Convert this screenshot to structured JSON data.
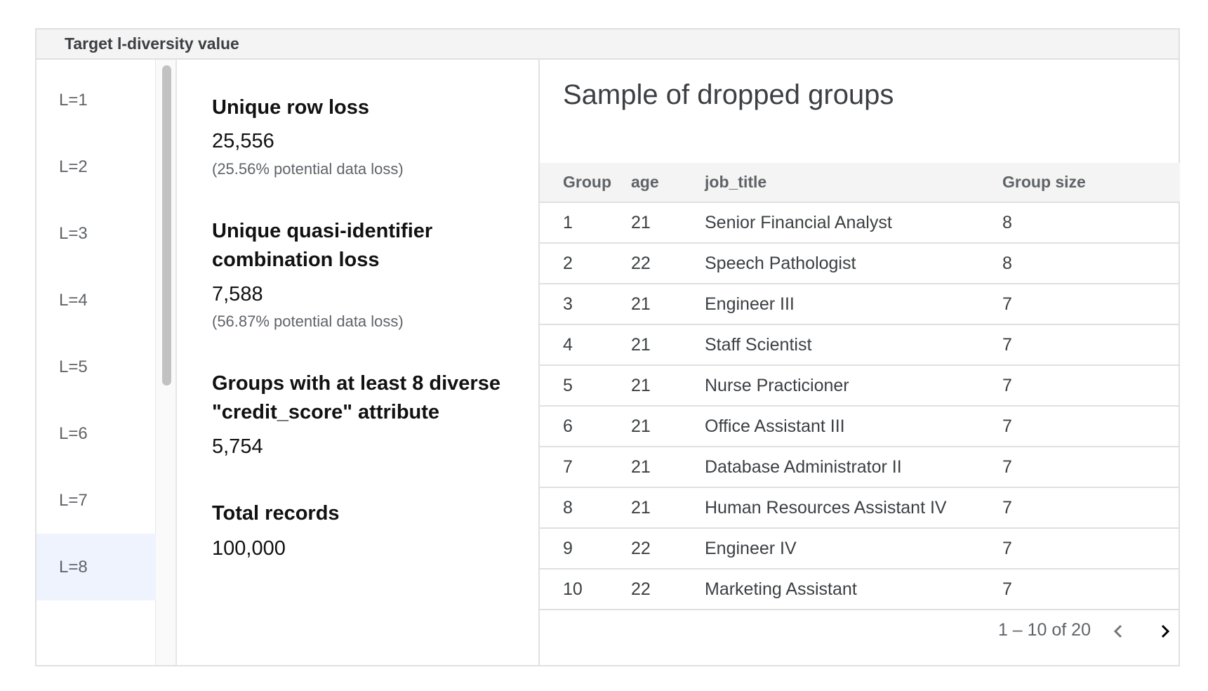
{
  "header": {
    "title": "Target l-diversity value"
  },
  "l_values": {
    "items": [
      "L=1",
      "L=2",
      "L=3",
      "L=4",
      "L=5",
      "L=6",
      "L=7",
      "L=8"
    ],
    "selected": "L=8"
  },
  "stats": {
    "unique_row_loss": {
      "title": "Unique row loss",
      "value": "25,556",
      "note": "(25.56% potential data loss)"
    },
    "qi_loss": {
      "title_line1": "Unique quasi-identifier",
      "title_line2": "combination loss",
      "value": "7,588",
      "note": "(56.87% potential data loss)"
    },
    "groups": {
      "title_line1": "Groups with at least 8 diverse",
      "title_line2": "\"credit_score\" attribute",
      "value": "5,754"
    },
    "total": {
      "title": "Total records",
      "value": "100,000"
    }
  },
  "table": {
    "title": "Sample of dropped groups",
    "columns": [
      "Group",
      "age",
      "job_title",
      "Group size"
    ],
    "rows": [
      [
        "1",
        "21",
        "Senior Financial Analyst",
        "8"
      ],
      [
        "2",
        "22",
        "Speech Pathologist",
        "8"
      ],
      [
        "3",
        "21",
        "Engineer III",
        "7"
      ],
      [
        "4",
        "21",
        "Staff Scientist",
        "7"
      ],
      [
        "5",
        "21",
        "Nurse Practicioner",
        "7"
      ],
      [
        "6",
        "21",
        "Office Assistant III",
        "7"
      ],
      [
        "7",
        "21",
        "Database Administrator II",
        "7"
      ],
      [
        "8",
        "21",
        "Human Resources Assistant IV",
        "7"
      ],
      [
        "9",
        "22",
        "Engineer IV",
        "7"
      ],
      [
        "10",
        "22",
        "Marketing Assistant",
        "7"
      ]
    ],
    "pagination": "1 – 10 of 20"
  }
}
